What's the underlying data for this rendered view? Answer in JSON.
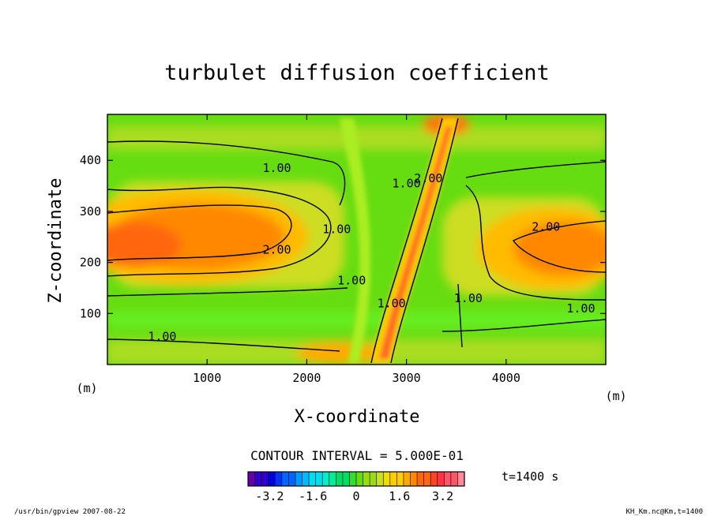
{
  "chart_data": {
    "type": "heatmap",
    "title": "turbulet diffusion coefficient",
    "xlabel": "X-coordinate",
    "ylabel": "Z-coordinate",
    "x_unit": "(m)",
    "y_unit": "(m)",
    "xlim": [
      0,
      5000
    ],
    "ylim": [
      0,
      490
    ],
    "x_ticks": [
      1000,
      2000,
      3000,
      4000
    ],
    "y_ticks": [
      100,
      200,
      300,
      400
    ],
    "contour_interval_text": "CONTOUR INTERVAL = 5.000E-01",
    "contour_labels": [
      {
        "text": "1.00",
        "x": 1700,
        "z": 385
      },
      {
        "text": "2.00",
        "x": 1700,
        "z": 225
      },
      {
        "text": "1.00",
        "x": 550,
        "z": 55
      },
      {
        "text": "1.00",
        "x": 2300,
        "z": 265
      },
      {
        "text": "1.00",
        "x": 2450,
        "z": 165
      },
      {
        "text": "1.00",
        "x": 3000,
        "z": 355
      },
      {
        "text": "2.00",
        "x": 3220,
        "z": 365
      },
      {
        "text": "1.00",
        "x": 2850,
        "z": 120
      },
      {
        "text": "1.00",
        "x": 3620,
        "z": 130
      },
      {
        "text": "2.00",
        "x": 4400,
        "z": 270
      },
      {
        "text": "1.00",
        "x": 4750,
        "z": 110
      }
    ],
    "colorbar": {
      "range": [
        -4.0,
        4.0
      ],
      "ticks": [
        -3.2,
        -1.6,
        0,
        1.6,
        3.2
      ],
      "tick_labels": [
        "-3.2",
        "-1.6",
        "0",
        "1.6",
        "3.2"
      ]
    },
    "time_label": "t=1400  s",
    "footer_left": "/usr/bin/gpview  2007-08-22",
    "footer_right": "KH_Km.nc@Km,t=1400"
  }
}
